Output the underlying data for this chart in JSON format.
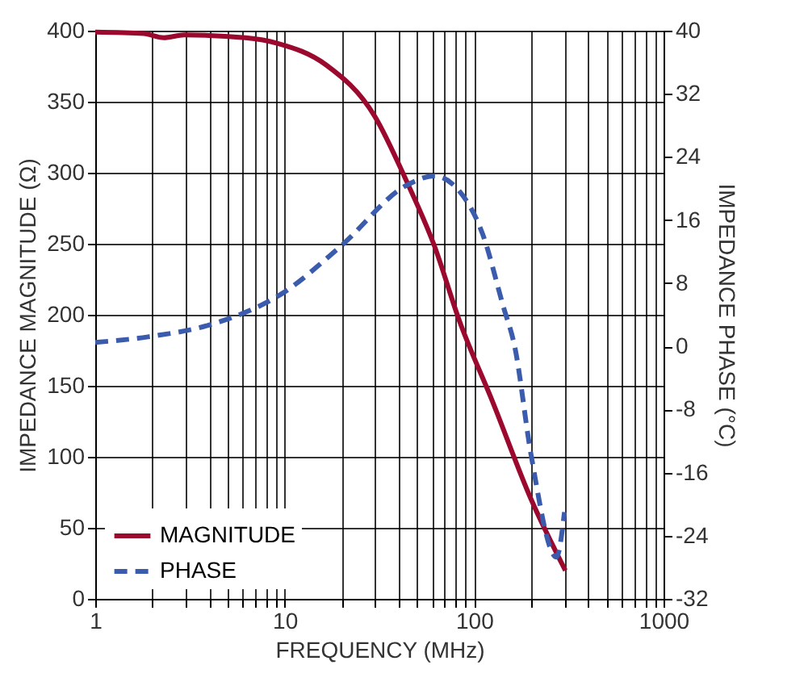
{
  "chart_data": {
    "type": "line",
    "xlabel": "FREQUENCY (MHz)",
    "ylabel": "IMPEDANCE MAGNITUDE (Ω)",
    "y2label": "IMPEDANCE PHASE (°C)",
    "log": "x",
    "grid": true,
    "legend": "bottom left",
    "marker": "none",
    "xlim": [
      1,
      1000
    ],
    "xticks": [
      1,
      {
        "value": 2,
        "label": null
      },
      {
        "value": 3,
        "label": null
      },
      {
        "value": 4,
        "label": null
      },
      {
        "value": 5,
        "label": null
      },
      {
        "value": 6,
        "label": null
      },
      {
        "value": 7,
        "label": null
      },
      {
        "value": 8,
        "label": null
      },
      {
        "value": 9,
        "label": null
      },
      10,
      {
        "value": 20,
        "label": null
      },
      {
        "value": 30,
        "label": null
      },
      {
        "value": 40,
        "label": null
      },
      {
        "value": 50,
        "label": null
      },
      {
        "value": 60,
        "label": null
      },
      {
        "value": 70,
        "label": null
      },
      {
        "value": 80,
        "label": null
      },
      {
        "value": 90,
        "label": null
      },
      100,
      {
        "value": 200,
        "label": null
      },
      {
        "value": 300,
        "label": null
      },
      {
        "value": 400,
        "label": null
      },
      {
        "value": 500,
        "label": null
      },
      {
        "value": 600,
        "label": null
      },
      {
        "value": 700,
        "label": null
      },
      {
        "value": 800,
        "label": null
      },
      {
        "value": 900,
        "label": null
      },
      1000
    ],
    "ylim": [
      0,
      400
    ],
    "yticks": [
      0,
      50,
      100,
      150,
      200,
      250,
      300,
      350,
      400
    ],
    "y2lim": [
      -32,
      40
    ],
    "y2ticks": [
      -32,
      -24,
      -16,
      -8,
      0,
      8,
      16,
      24,
      32,
      40
    ],
    "series": [
      {
        "name": "MAGNITUDE",
        "color": "#9b0a2e",
        "line_style": "solid",
        "x": [
          1,
          1.8,
          2.3,
          2.95,
          6.2,
          9.2,
          16.5,
          29.8,
          44,
          61.5,
          84,
          125,
          200,
          303
        ],
        "values": [
          399,
          398,
          395,
          397,
          395,
          391,
          376,
          340,
          294,
          249,
          195,
          139,
          70,
          20
        ]
      },
      {
        "name": "PHASE",
        "color": "#3b5bad",
        "line_style": "dashed",
        "axis": "y2",
        "x": [
          1,
          1.9,
          4.4,
          9.7,
          20,
          44,
          61.5,
          84,
          111,
          142,
          164,
          200,
          272,
          300
        ],
        "values": [
          0.5,
          1.2,
          3.0,
          6.7,
          12.8,
          20.4,
          21.6,
          19.6,
          14.2,
          5.2,
          -0.1,
          -13.8,
          -26.7,
          -21
        ]
      }
    ]
  }
}
